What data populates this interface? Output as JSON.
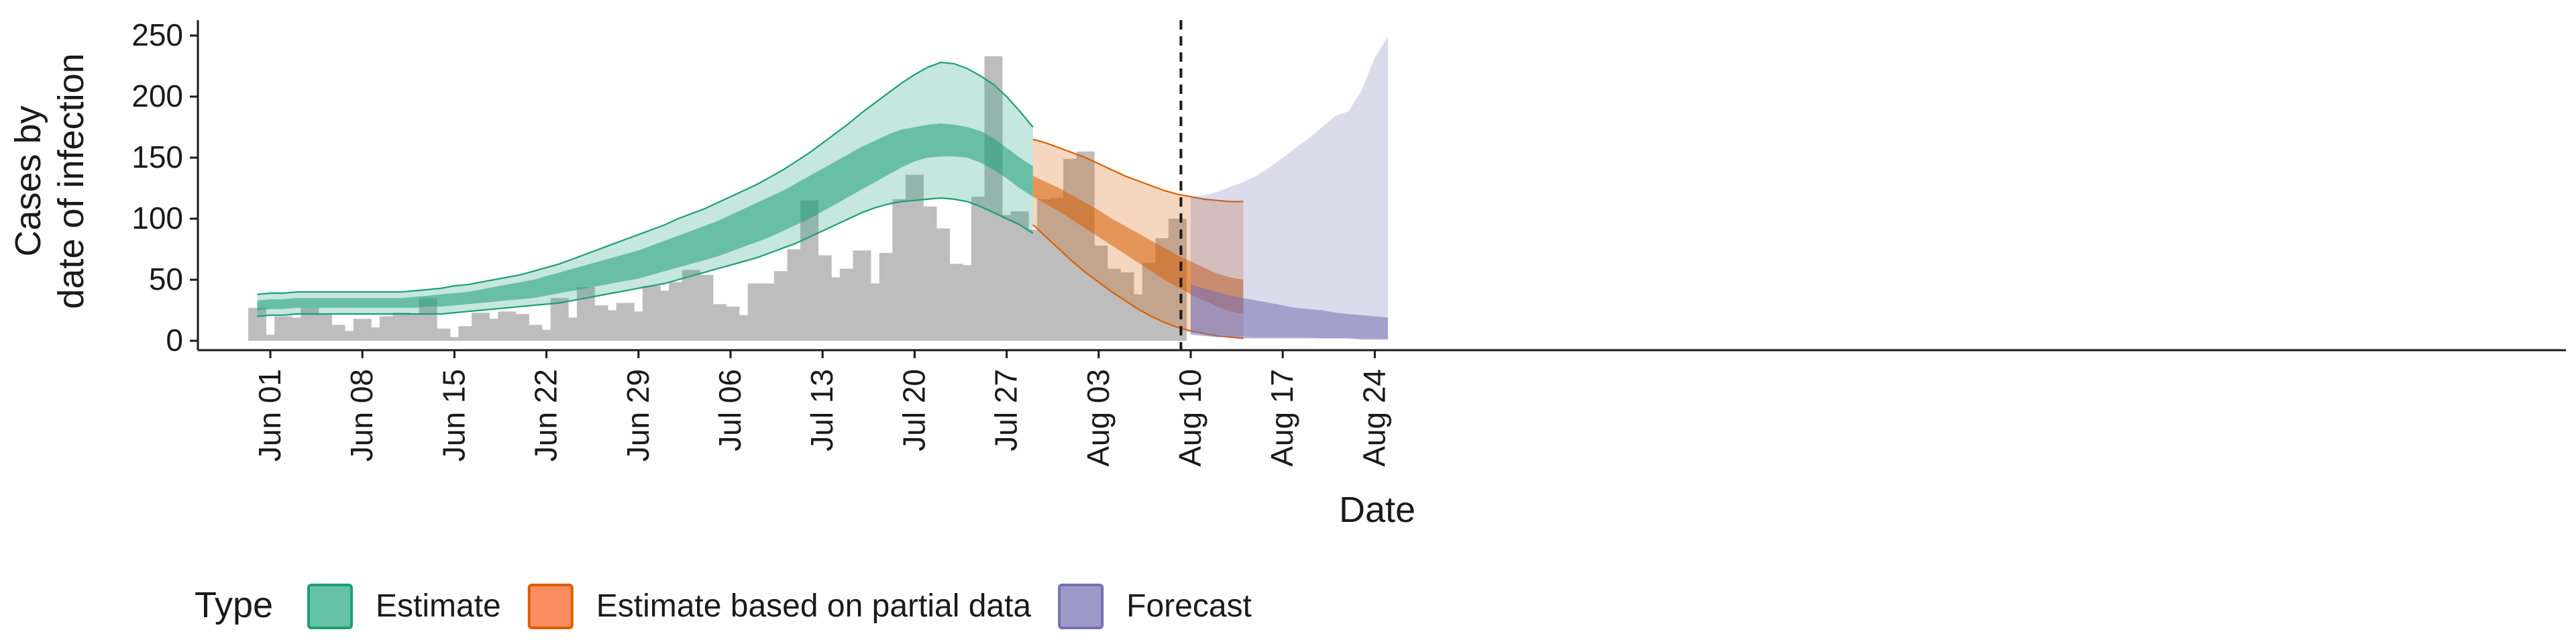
{
  "chart_data": {
    "type": "bar",
    "title": "",
    "xlabel": "Date",
    "ylabel_lines": [
      "Cases by",
      "date of infection"
    ],
    "ylim": [
      0,
      260
    ],
    "y_ticks": [
      0,
      50,
      100,
      150,
      200,
      250
    ],
    "x_range": [
      "2020-05-27",
      "2020-08-26"
    ],
    "x_ticks": [
      {
        "date": "2020-06-01",
        "label": "Jun 01"
      },
      {
        "date": "2020-06-08",
        "label": "Jun 08"
      },
      {
        "date": "2020-06-15",
        "label": "Jun 15"
      },
      {
        "date": "2020-06-22",
        "label": "Jun 22"
      },
      {
        "date": "2020-06-29",
        "label": "Jun 29"
      },
      {
        "date": "2020-07-06",
        "label": "Jul 06"
      },
      {
        "date": "2020-07-13",
        "label": "Jul 13"
      },
      {
        "date": "2020-07-20",
        "label": "Jul 20"
      },
      {
        "date": "2020-07-27",
        "label": "Jul 27"
      },
      {
        "date": "2020-08-03",
        "label": "Aug 03"
      },
      {
        "date": "2020-08-10",
        "label": "Aug 10"
      },
      {
        "date": "2020-08-17",
        "label": "Aug 17"
      },
      {
        "date": "2020-08-24",
        "label": "Aug 24"
      }
    ],
    "grid": false,
    "legend_position": "bottom-left",
    "legend_title": "Type",
    "legend": [
      {
        "label": "Estimate",
        "fill": "#66c2a5",
        "stroke": "#1b9e77"
      },
      {
        "label": "Estimate based on partial data",
        "fill": "#fc8d62",
        "stroke": "#d95f02"
      },
      {
        "label": "Forecast",
        "fill": "#9e9ac8",
        "stroke": "#7570b3"
      }
    ],
    "colors": {
      "bars": "#bdbdbd",
      "estimate_outer": "#1b9e77",
      "estimate_inner": "#1b9e77",
      "partial_outer": "#d95f02",
      "partial_inner": "#d95f02",
      "forecast_outer": "#7570b3",
      "forecast_inner": "#7570b3"
    },
    "vline_date": "2020-08-09",
    "bars": {
      "start_date": "2020-05-31",
      "values": [
        27,
        5,
        20,
        19,
        27,
        22,
        13,
        8,
        18,
        11,
        20,
        23,
        22,
        35,
        10,
        3,
        12,
        23,
        18,
        24,
        22,
        13,
        9,
        35,
        19,
        44,
        29,
        25,
        31,
        24,
        45,
        41,
        48,
        58,
        54,
        30,
        28,
        21,
        47,
        47,
        57,
        75,
        115,
        70,
        52,
        59,
        74,
        47,
        72,
        116,
        136,
        110,
        92,
        63,
        62,
        118,
        233,
        103,
        106,
        91,
        116,
        117,
        149,
        155,
        78,
        59,
        56,
        38,
        64,
        84,
        100
      ]
    },
    "estimate": {
      "start_date": "2020-05-31",
      "outer_upper": [
        38,
        39,
        39,
        40,
        40,
        40,
        40,
        40,
        40,
        40,
        40,
        40,
        41,
        42,
        43,
        45,
        46,
        48,
        50,
        52,
        54,
        57,
        60,
        63,
        67,
        71,
        75,
        79,
        83,
        87,
        91,
        95,
        100,
        104,
        108,
        113,
        118,
        123,
        128,
        134,
        140,
        147,
        154,
        162,
        170,
        178,
        187,
        195,
        203,
        211,
        218,
        224,
        228,
        227,
        223,
        217,
        210,
        200,
        188,
        175
      ],
      "outer_lower": [
        20,
        21,
        21,
        22,
        22,
        22,
        22,
        22,
        22,
        22,
        22,
        22,
        22,
        22,
        22,
        23,
        24,
        25,
        26,
        27,
        28,
        29,
        30,
        31,
        33,
        35,
        37,
        39,
        41,
        43,
        45,
        47,
        50,
        53,
        56,
        59,
        62,
        65,
        68,
        72,
        76,
        80,
        85,
        90,
        95,
        100,
        105,
        109,
        112,
        114,
        115,
        116,
        117,
        116,
        114,
        110,
        105,
        100,
        95,
        88
      ],
      "inner_upper": [
        33,
        34,
        34,
        35,
        35,
        35,
        35,
        35,
        35,
        35,
        35,
        35,
        36,
        37,
        38,
        39,
        40,
        42,
        44,
        46,
        48,
        50,
        53,
        56,
        59,
        62,
        65,
        68,
        71,
        74,
        78,
        82,
        86,
        90,
        94,
        98,
        103,
        108,
        113,
        118,
        123,
        129,
        135,
        141,
        147,
        153,
        159,
        164,
        169,
        173,
        175,
        177,
        178,
        177,
        175,
        172,
        166,
        158,
        150,
        143
      ],
      "inner_lower": [
        25,
        26,
        26,
        27,
        27,
        27,
        27,
        27,
        27,
        27,
        27,
        27,
        27,
        28,
        28,
        29,
        30,
        31,
        32,
        33,
        34,
        35,
        37,
        39,
        41,
        43,
        45,
        47,
        49,
        51,
        54,
        57,
        60,
        63,
        66,
        69,
        73,
        77,
        81,
        85,
        90,
        95,
        100,
        106,
        112,
        118,
        124,
        130,
        136,
        142,
        147,
        150,
        151,
        151,
        150,
        146,
        140,
        133,
        125,
        118
      ]
    },
    "partial": {
      "start_date": "2020-07-29",
      "outer_upper": [
        165,
        162,
        158,
        154,
        150,
        145,
        140,
        135,
        131,
        127,
        123,
        120,
        118,
        116,
        115,
        114,
        114
      ],
      "outer_lower": [
        95,
        85,
        75,
        65,
        56,
        48,
        40,
        33,
        26,
        20,
        15,
        11,
        8,
        6,
        4,
        3,
        2
      ],
      "inner_upper": [
        135,
        130,
        125,
        119,
        113,
        107,
        100,
        94,
        88,
        82,
        76,
        70,
        65,
        60,
        55,
        52,
        50
      ],
      "inner_lower": [
        118,
        112,
        106,
        99,
        92,
        85,
        78,
        71,
        64,
        57,
        50,
        44,
        38,
        33,
        28,
        24,
        22
      ]
    },
    "forecast": {
      "start_date": "2020-08-10",
      "outer_upper": [
        118,
        119,
        122,
        126,
        130,
        135,
        142,
        150,
        158,
        166,
        175,
        184,
        188,
        205,
        232,
        249
      ],
      "outer_lower": [
        7,
        6,
        5,
        4,
        4,
        3,
        3,
        3,
        3,
        3,
        2,
        2,
        2,
        2,
        2,
        2
      ],
      "inner_upper": [
        46,
        43,
        40,
        37,
        35,
        33,
        31,
        29,
        27,
        26,
        25,
        23,
        22,
        21,
        20,
        19
      ],
      "inner_lower": [
        5,
        4,
        3,
        3,
        2,
        2,
        2,
        2,
        2,
        2,
        2,
        2,
        2,
        1,
        1,
        1
      ]
    }
  }
}
